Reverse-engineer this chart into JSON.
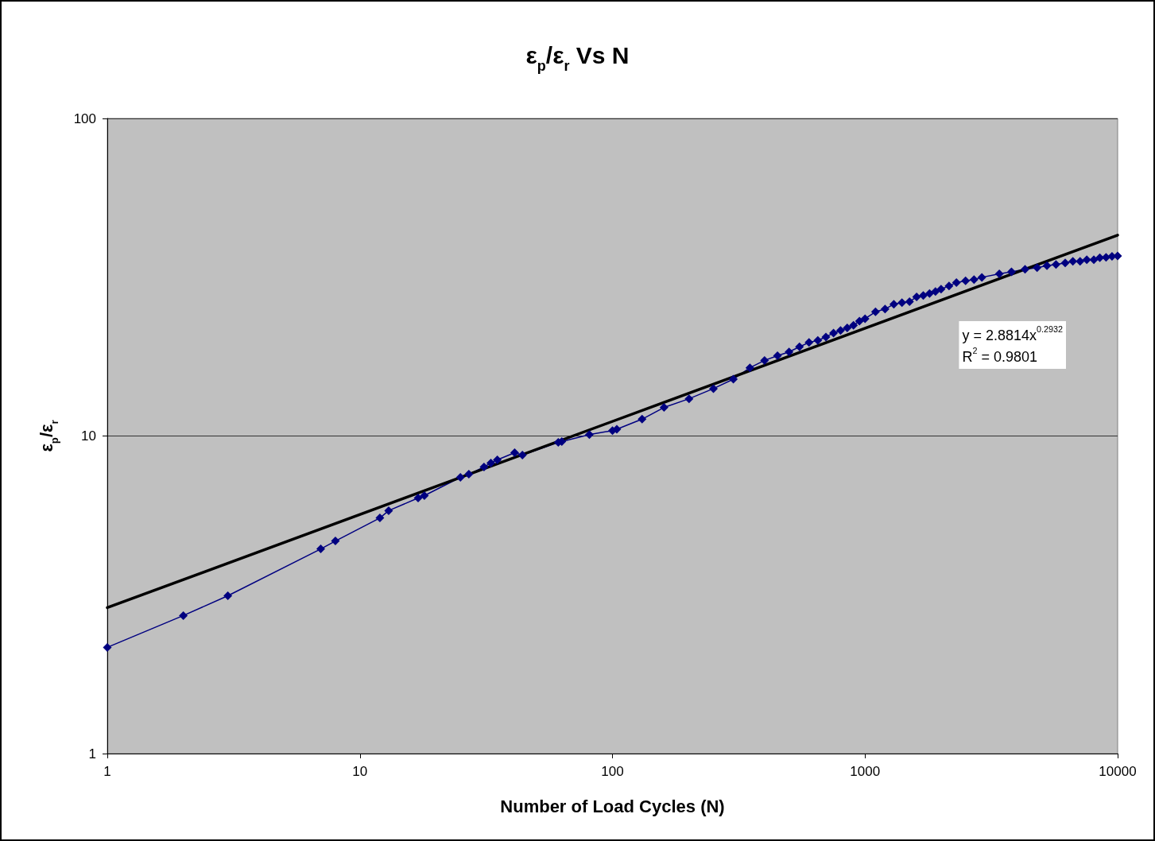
{
  "chart_data": {
    "type": "line",
    "title": "ε$_{p}$/ε$_{r}$ Vs N",
    "xlabel": "Number of Load Cycles (N)",
    "ylabel": "ε$_{p}$/ε$_{r}$",
    "log": "xy",
    "xlim": [
      1,
      10000
    ],
    "xticks": [
      1,
      10,
      100,
      1000,
      10000
    ],
    "ylim": [
      1,
      100
    ],
    "yticks": [
      1,
      10,
      100
    ],
    "grid": "y",
    "line_style": "solid",
    "series": [
      {
        "color": "#000080",
        "marker": "diamond",
        "x": [
          1,
          2,
          3,
          7,
          8,
          12,
          13,
          17,
          18,
          25,
          27,
          31,
          33,
          35,
          41,
          44,
          61,
          63,
          81,
          100,
          104,
          131,
          160,
          201,
          251,
          301,
          350,
          400,
          450,
          500,
          550,
          600,
          650,
          700,
          750,
          800,
          850,
          900,
          950,
          1000,
          1100,
          1200,
          1300,
          1400,
          1500,
          1600,
          1700,
          1800,
          1900,
          2000,
          2150,
          2300,
          2500,
          2700,
          2900,
          3400,
          3800,
          4300,
          4800,
          5250,
          5700,
          6200,
          6650,
          7100,
          7550,
          8050,
          8500,
          9000,
          9500,
          10000
        ],
        "values": [
          2.16,
          2.72,
          3.14,
          4.41,
          4.67,
          5.52,
          5.82,
          6.38,
          6.49,
          7.41,
          7.58,
          7.99,
          8.22,
          8.41,
          8.86,
          8.71,
          9.55,
          9.6,
          10.1,
          10.4,
          10.5,
          11.3,
          12.3,
          13.1,
          14.1,
          15.1,
          16.4,
          17.3,
          17.9,
          18.4,
          19.1,
          19.7,
          20.0,
          20.5,
          21.1,
          21.5,
          21.9,
          22.3,
          23.0,
          23.4,
          24.6,
          25.1,
          26.0,
          26.3,
          26.5,
          27.4,
          27.7,
          28.1,
          28.5,
          29.0,
          29.7,
          30.4,
          30.8,
          31.1,
          31.6,
          32.4,
          32.9,
          33.5,
          33.9,
          34.4,
          34.7,
          35.1,
          35.5,
          35.5,
          35.9,
          35.9,
          36.4,
          36.5,
          36.8,
          36.9
        ]
      },
      {
        "type": "line",
        "color": "#000000",
        "marker": "none",
        "x": [
          1,
          10000
        ],
        "values": [
          2.8814,
          42.9
        ]
      }
    ],
    "annotations": [
      "y = 2.8814x$^{0.2932}$",
      "R$^{2}$ = 0.9801"
    ]
  }
}
